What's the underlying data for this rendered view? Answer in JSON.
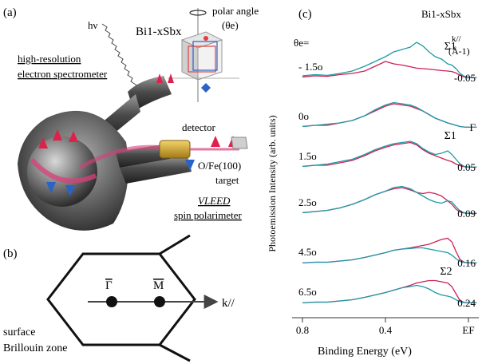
{
  "panel_a": {
    "label": "(a)",
    "hv": "hν",
    "sample": "Bi1-xSbx",
    "polar_angle_line1": "polar angle",
    "polar_angle_line2": "(θe)",
    "spectrometer_line1": "high-resolution",
    "spectrometer_line2": "electron spectrometer",
    "detector": "detector",
    "target_line1": "O/Fe(100)",
    "target_line2": "target",
    "vleed_line1": "VLEED",
    "vleed_line2": "spin polarimeter"
  },
  "panel_b": {
    "label": "(b)",
    "gamma_bar": "Γ",
    "m_bar": "M",
    "k_axis": "k//",
    "caption_line1": "surface",
    "caption_line2": "Brillouin zone"
  },
  "panel_c": {
    "label": "(c)",
    "compound": "Bi1-xSbx",
    "theta_header_line1": "θe=",
    "k_header_line1": "k//",
    "k_header_line2": "(Å-1)",
    "ylabel": "Photoemission Intensity (arb. units)",
    "xlabel": "Binding Energy (eV)",
    "colors": {
      "spin_up": "#cc2255",
      "spin_down": "#1d9aa8"
    }
  },
  "chart_data": {
    "type": "line",
    "title": "",
    "xlabel": "Binding Energy (eV)",
    "ylabel": "Photoemission Intensity (arb. units)",
    "x_reversed": true,
    "xlim": [
      0.85,
      -0.05
    ],
    "xticks": [
      {
        "value": 0.8,
        "label": "0.8"
      },
      {
        "value": 0.4,
        "label": "0.4"
      },
      {
        "value": 0.0,
        "label": "EF"
      }
    ],
    "x": [
      0.8,
      0.74,
      0.68,
      0.62,
      0.56,
      0.5,
      0.45,
      0.4,
      0.36,
      0.32,
      0.28,
      0.25,
      0.22,
      0.19,
      0.16,
      0.13,
      0.1,
      0.08,
      0.06,
      0.04,
      0.02,
      0.0,
      -0.02,
      -0.04
    ],
    "spectra": [
      {
        "angle": "- 1.5o",
        "k": "-0.05",
        "marker": "Σ1",
        "marker_x": 0.04,
        "red": [
          0.05,
          0.1,
          0.08,
          0.15,
          0.2,
          0.3,
          0.5,
          0.7,
          0.6,
          0.55,
          0.48,
          0.42,
          0.4,
          0.38,
          0.35,
          0.32,
          0.3,
          0.28,
          0.22,
          0.12,
          0.05,
          0.03,
          0.02,
          0.02
        ],
        "blue": [
          0.1,
          0.15,
          0.12,
          0.2,
          0.3,
          0.5,
          0.7,
          0.9,
          1.1,
          1.2,
          1.3,
          1.5,
          1.35,
          1.1,
          0.9,
          0.8,
          0.6,
          0.55,
          0.4,
          0.2,
          0.08,
          0.05,
          0.03,
          0.02
        ]
      },
      {
        "angle": "0o",
        "k": "Γ",
        "marker": "",
        "marker_x": null,
        "red": [
          0.05,
          0.1,
          0.1,
          0.2,
          0.3,
          0.5,
          0.7,
          0.9,
          1.0,
          0.95,
          0.9,
          0.8,
          0.7,
          0.55,
          0.4,
          0.3,
          0.2,
          0.15,
          0.1,
          0.05,
          0.03,
          0.02,
          0.02,
          0.02
        ],
        "blue": [
          0.05,
          0.1,
          0.15,
          0.2,
          0.3,
          0.5,
          0.75,
          0.95,
          1.05,
          1.0,
          0.95,
          0.85,
          0.7,
          0.55,
          0.4,
          0.3,
          0.2,
          0.15,
          0.1,
          0.05,
          0.03,
          0.02,
          0.02,
          0.02
        ]
      },
      {
        "angle": "1.5o",
        "k": "0.05",
        "marker": "Σ1",
        "marker_x": 0.04,
        "red": [
          0.05,
          0.1,
          0.1,
          0.2,
          0.3,
          0.5,
          0.7,
          0.85,
          0.95,
          1.0,
          1.05,
          0.95,
          0.75,
          0.6,
          0.5,
          0.4,
          0.3,
          0.25,
          0.15,
          0.08,
          0.04,
          0.02,
          0.02,
          0.02
        ],
        "blue": [
          0.05,
          0.1,
          0.15,
          0.25,
          0.35,
          0.55,
          0.75,
          0.9,
          1.0,
          1.05,
          1.1,
          1.0,
          0.8,
          0.65,
          0.55,
          0.6,
          0.7,
          0.55,
          0.35,
          0.15,
          0.05,
          0.03,
          0.02,
          0.02
        ]
      },
      {
        "angle": "2.5o",
        "k": "0.09",
        "marker": "",
        "marker_x": null,
        "red": [
          0.05,
          0.1,
          0.15,
          0.25,
          0.4,
          0.6,
          0.8,
          0.95,
          1.05,
          1.1,
          1.0,
          0.9,
          0.85,
          0.9,
          0.85,
          0.75,
          0.55,
          0.4,
          0.2,
          0.08,
          0.04,
          0.02,
          0.02,
          0.02
        ],
        "blue": [
          0.05,
          0.1,
          0.15,
          0.25,
          0.4,
          0.6,
          0.8,
          0.95,
          1.1,
          1.15,
          1.05,
          0.9,
          0.75,
          0.6,
          0.5,
          0.45,
          0.55,
          0.5,
          0.3,
          0.12,
          0.05,
          0.03,
          0.02,
          0.02
        ]
      },
      {
        "angle": "4.5o",
        "k": "0.16",
        "marker": "",
        "marker_x": null,
        "red": [
          0.02,
          0.05,
          0.05,
          0.1,
          0.15,
          0.25,
          0.35,
          0.45,
          0.55,
          0.6,
          0.65,
          0.7,
          0.75,
          0.8,
          0.9,
          1.0,
          1.05,
          0.9,
          0.5,
          0.15,
          0.05,
          0.03,
          0.02,
          0.02
        ],
        "blue": [
          0.02,
          0.05,
          0.05,
          0.1,
          0.15,
          0.25,
          0.35,
          0.45,
          0.55,
          0.6,
          0.62,
          0.65,
          0.65,
          0.6,
          0.55,
          0.5,
          0.45,
          0.35,
          0.2,
          0.08,
          0.04,
          0.02,
          0.02,
          0.02
        ]
      },
      {
        "angle": "6.5o",
        "k": "0.24",
        "marker": "Σ2",
        "marker_x": 0.06,
        "red": [
          0.02,
          0.05,
          0.05,
          0.1,
          0.15,
          0.25,
          0.35,
          0.45,
          0.55,
          0.65,
          0.75,
          0.85,
          0.9,
          0.95,
          0.95,
          0.9,
          0.85,
          0.7,
          0.4,
          0.1,
          0.04,
          0.02,
          0.02,
          0.02
        ],
        "blue": [
          0.02,
          0.05,
          0.05,
          0.1,
          0.15,
          0.25,
          0.35,
          0.45,
          0.55,
          0.65,
          0.7,
          0.75,
          0.7,
          0.6,
          0.45,
          0.35,
          0.3,
          0.25,
          0.15,
          0.06,
          0.03,
          0.02,
          0.02,
          0.02
        ]
      }
    ]
  }
}
